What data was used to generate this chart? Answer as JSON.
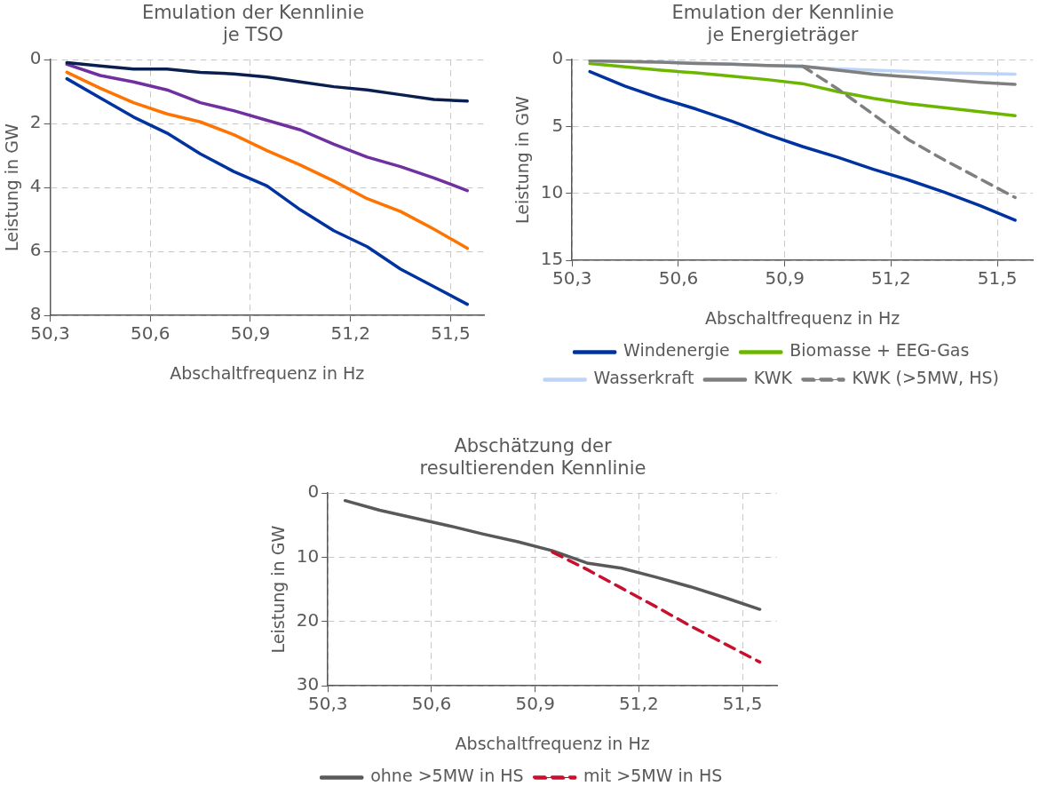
{
  "chart_data": [
    {
      "type": "line",
      "title": "Emulation der Kennlinie je TSO",
      "xlabel": "Abschaltfrequenz in Hz",
      "ylabel": "Leistung in GW",
      "x": [
        50.35,
        50.45,
        50.55,
        50.65,
        50.75,
        50.85,
        50.95,
        51.05,
        51.15,
        51.25,
        51.35,
        51.45,
        51.55
      ],
      "xlim": [
        50.3,
        51.6
      ],
      "xticks": [
        {
          "value": 50.3,
          "label": "50,3"
        },
        {
          "value": 50.6,
          "label": "50,6"
        },
        {
          "value": 50.9,
          "label": "50,9"
        },
        {
          "value": 51.2,
          "label": "51,2"
        },
        {
          "value": 51.5,
          "label": "51,5"
        }
      ],
      "ylim": [
        8,
        0
      ],
      "yticks": [
        0,
        2,
        4,
        6,
        8
      ],
      "grid": true,
      "legend": false,
      "series": [
        {
          "color": "#ff7300",
          "values": [
            0.4,
            0.9,
            1.35,
            1.7,
            1.95,
            2.35,
            2.85,
            3.3,
            3.8,
            4.35,
            4.75,
            5.3,
            5.9
          ]
        },
        {
          "color": "#7030a0",
          "values": [
            0.15,
            0.5,
            0.7,
            0.95,
            1.35,
            1.6,
            1.9,
            2.2,
            2.65,
            3.05,
            3.35,
            3.7,
            4.1
          ]
        },
        {
          "color": "#0033a0",
          "values": [
            0.6,
            1.2,
            1.8,
            2.3,
            2.95,
            3.5,
            3.95,
            4.7,
            5.35,
            5.85,
            6.55,
            7.1,
            7.65
          ]
        },
        {
          "color": "#0a1f4f",
          "values": [
            0.1,
            0.2,
            0.3,
            0.3,
            0.4,
            0.45,
            0.55,
            0.7,
            0.85,
            0.95,
            1.1,
            1.25,
            1.3
          ]
        }
      ]
    },
    {
      "type": "line",
      "title": "Emulation der Kennlinie je Energieträger",
      "xlabel": "Abschaltfrequenz in Hz",
      "ylabel": "Leistung in GW",
      "x": [
        50.35,
        50.45,
        50.55,
        50.65,
        50.75,
        50.85,
        50.95,
        51.05,
        51.15,
        51.25,
        51.35,
        51.45,
        51.55
      ],
      "xlim": [
        50.3,
        51.6
      ],
      "xticks": [
        {
          "value": 50.3,
          "label": "50,3"
        },
        {
          "value": 50.6,
          "label": "50,6"
        },
        {
          "value": 50.9,
          "label": "50,9"
        },
        {
          "value": 51.2,
          "label": "51,2"
        },
        {
          "value": 51.5,
          "label": "51,5"
        }
      ],
      "ylim": [
        15,
        0
      ],
      "yticks": [
        0,
        5,
        10,
        15
      ],
      "grid": true,
      "legend": "bottom",
      "series": [
        {
          "name": "Windenergie",
          "color": "#0033a0",
          "values": [
            0.9,
            2.0,
            2.9,
            3.7,
            4.6,
            5.6,
            6.5,
            7.3,
            8.2,
            9.0,
            9.9,
            10.9,
            12.0
          ]
        },
        {
          "name": "Biomasse + EEG-Gas",
          "color": "#6cb600",
          "values": [
            0.3,
            0.55,
            0.8,
            1.0,
            1.25,
            1.5,
            1.8,
            2.4,
            2.9,
            3.3,
            3.6,
            3.9,
            4.2
          ]
        },
        {
          "name": "Wasserkraft",
          "color": "#bcd4f7",
          "values": [
            0.1,
            0.15,
            0.2,
            0.25,
            0.35,
            0.45,
            0.55,
            0.7,
            0.8,
            0.9,
            1.0,
            1.05,
            1.1
          ]
        },
        {
          "name": "KWK",
          "color": "#7f7f7f",
          "values": [
            0.1,
            0.15,
            0.2,
            0.3,
            0.35,
            0.45,
            0.5,
            0.8,
            1.1,
            1.3,
            1.5,
            1.7,
            1.85
          ]
        },
        {
          "name": "KWK (>5MW, HS)",
          "color": "#7f7f7f",
          "line_style": "dashed",
          "values": [
            null,
            null,
            null,
            null,
            null,
            null,
            0.5,
            2.2,
            4.1,
            6.0,
            7.5,
            8.9,
            10.3
          ]
        }
      ]
    },
    {
      "type": "line",
      "title": "Abschätzung der resultierenden Kennlinie",
      "xlabel": "Abschaltfrequenz in Hz",
      "ylabel": "Leistung in GW",
      "x": [
        50.35,
        50.45,
        50.55,
        50.65,
        50.75,
        50.85,
        50.95,
        51.05,
        51.15,
        51.25,
        51.35,
        51.45,
        51.55
      ],
      "xlim": [
        50.3,
        51.6
      ],
      "xticks": [
        {
          "value": 50.3,
          "label": "50,3"
        },
        {
          "value": 50.6,
          "label": "50,6"
        },
        {
          "value": 50.9,
          "label": "50,9"
        },
        {
          "value": 51.2,
          "label": "51,2"
        },
        {
          "value": 51.5,
          "label": "51,5"
        }
      ],
      "ylim": [
        30,
        0
      ],
      "yticks": [
        0,
        10,
        20,
        30
      ],
      "grid": true,
      "legend": "bottom",
      "series": [
        {
          "name": "ohne >5MW in HS",
          "color": "#595959",
          "values": [
            1.2,
            2.7,
            3.9,
            5.1,
            6.4,
            7.6,
            9.0,
            10.9,
            11.7,
            13.1,
            14.6,
            16.3,
            18.1
          ]
        },
        {
          "name": "mit >5MW in HS",
          "color": "#c8102e",
          "line_style": "dashed",
          "values": [
            null,
            null,
            null,
            null,
            null,
            null,
            9.2,
            11.9,
            14.8,
            17.7,
            20.7,
            23.5,
            26.3
          ]
        }
      ]
    }
  ]
}
